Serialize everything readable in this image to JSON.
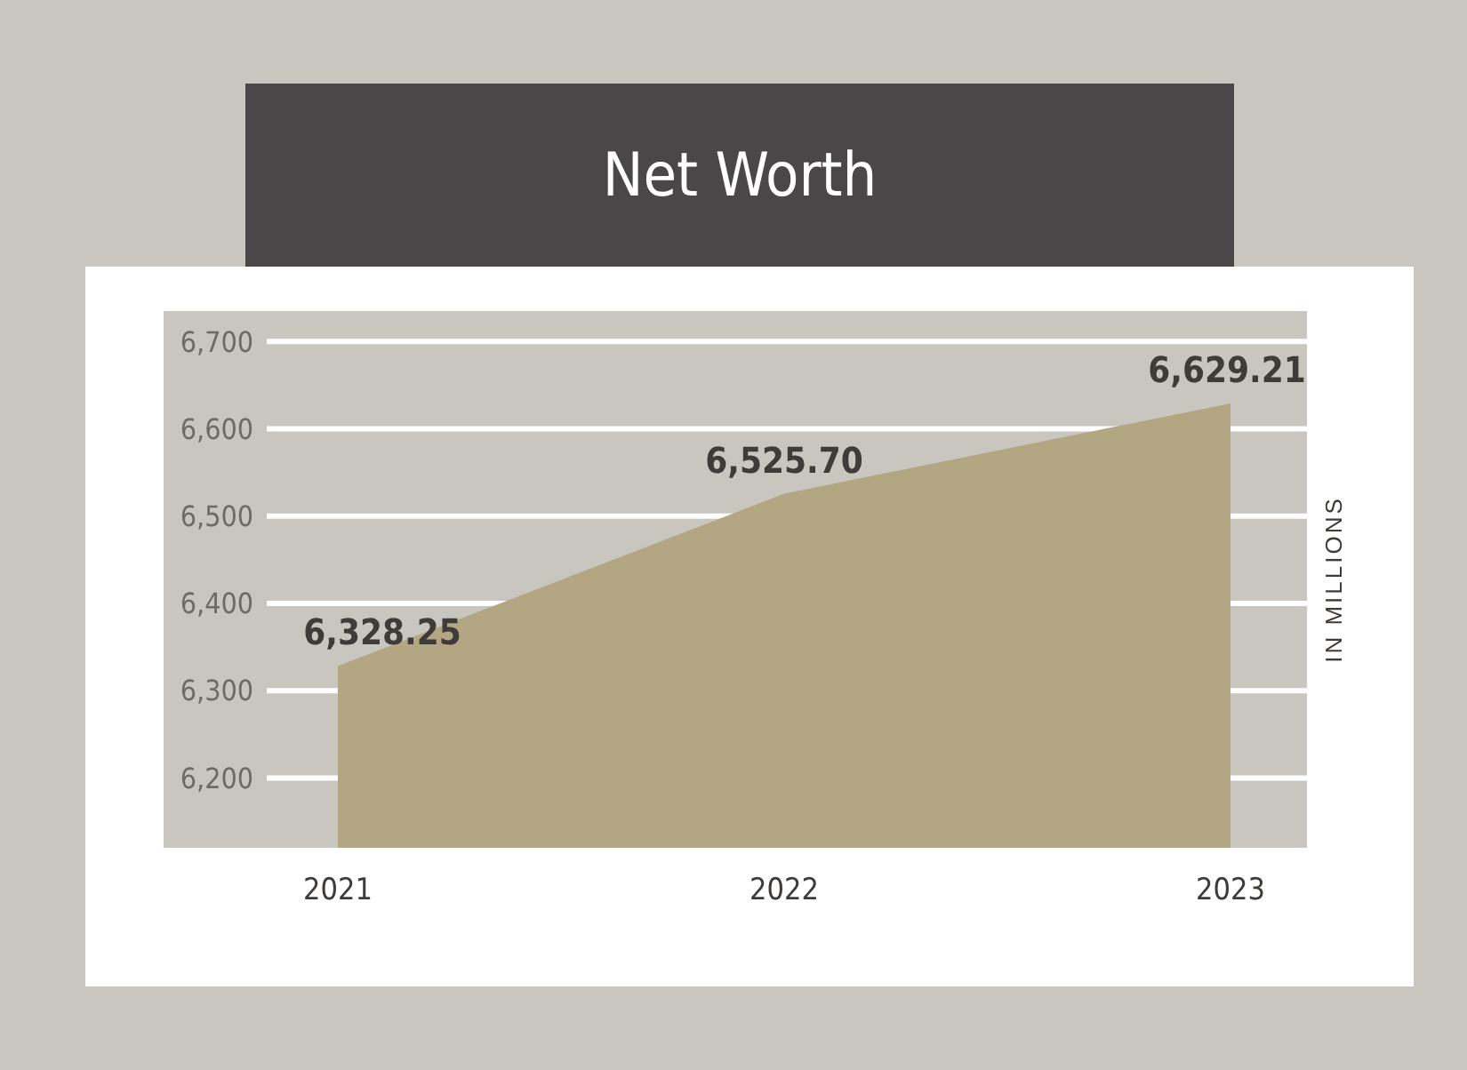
{
  "chart_data": {
    "type": "area",
    "title": "Net Worth",
    "ylabel": "IN MILLIONS",
    "categories": [
      "2021",
      "2022",
      "2023"
    ],
    "series": [
      {
        "color": "#b3a682",
        "values": [
          6328.25,
          6525.7,
          6629.21
        ],
        "value_labels": [
          "6,328.25",
          "6,525.70",
          "6,629.21"
        ]
      }
    ],
    "ylim": [
      6120,
      6735
    ],
    "yticks": [
      {
        "value": 6200,
        "label": "6,200"
      },
      {
        "value": 6300,
        "label": "6,300"
      },
      {
        "value": 6400,
        "label": "6,400"
      },
      {
        "value": 6500,
        "label": "6,500"
      },
      {
        "value": 6600,
        "label": "6,600"
      },
      {
        "value": 6700,
        "label": "6,700"
      }
    ],
    "grid": "y"
  }
}
